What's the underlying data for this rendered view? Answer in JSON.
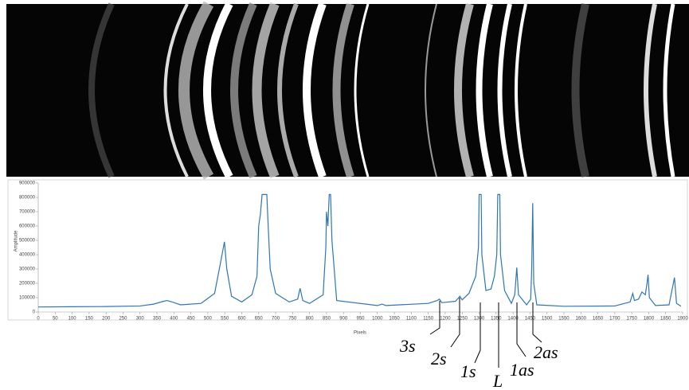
{
  "chart_data": {
    "type": "line",
    "x_label": "Pixels",
    "y_label": "Amplitude",
    "xlim": [
      0,
      1900
    ],
    "xticks": [
      0,
      50,
      100,
      150,
      200,
      250,
      300,
      350,
      400,
      450,
      500,
      550,
      600,
      650,
      700,
      750,
      800,
      850,
      900,
      950,
      1000,
      1050,
      1100,
      1150,
      1200,
      1250,
      1300,
      1350,
      1400,
      1450,
      1500,
      1550,
      1600,
      1650,
      1700,
      1750,
      1800,
      1850,
      1900
    ],
    "ylim": [
      0,
      900000
    ],
    "yticks": [
      0,
      100000,
      200000,
      300000,
      400000,
      500000,
      600000,
      700000,
      800000,
      900000
    ],
    "series": [
      {
        "color": "#2e75b6",
        "x": [
          0,
          100,
          200,
          300,
          340,
          370,
          380,
          395,
          420,
          480,
          520,
          538,
          549,
          556,
          570,
          600,
          630,
          645,
          650,
          655,
          660,
          674,
          678,
          684,
          700,
          740,
          765,
          772,
          780,
          800,
          840,
          848,
          850,
          854,
          858,
          862,
          866,
          880,
          1000,
          1014,
          1025,
          1150,
          1176,
          1183,
          1190,
          1230,
          1240,
          1243,
          1250,
          1270,
          1290,
          1298,
          1300,
          1306,
          1308,
          1320,
          1335,
          1345,
          1352,
          1355,
          1361,
          1363,
          1375,
          1395,
          1405,
          1411,
          1416,
          1440,
          1452,
          1455,
          1458,
          1461,
          1470,
          1550,
          1700,
          1745,
          1753,
          1758,
          1770,
          1780,
          1790,
          1795,
          1798,
          1802,
          1820,
          1860,
          1876,
          1882,
          1895
        ],
        "values": [
          35000,
          37000,
          38000,
          42000,
          55000,
          75000,
          80000,
          70000,
          50000,
          60000,
          130000,
          350000,
          490000,
          300000,
          110000,
          70000,
          120000,
          250000,
          600000,
          680000,
          820000,
          820000,
          600000,
          300000,
          130000,
          70000,
          90000,
          165000,
          80000,
          60000,
          120000,
          450000,
          700000,
          600000,
          820000,
          820000,
          500000,
          80000,
          45000,
          55000,
          45000,
          60000,
          80000,
          90000,
          65000,
          75000,
          100000,
          110000,
          85000,
          130000,
          250000,
          450000,
          820000,
          820000,
          400000,
          150000,
          160000,
          250000,
          400000,
          820000,
          820000,
          400000,
          150000,
          60000,
          120000,
          310000,
          120000,
          50000,
          90000,
          300000,
          760000,
          200000,
          50000,
          40000,
          42000,
          70000,
          130000,
          80000,
          90000,
          140000,
          120000,
          200000,
          260000,
          100000,
          45000,
          50000,
          240000,
          60000,
          40000
        ]
      }
    ],
    "annotations": [
      {
        "text": "3s"
      },
      {
        "text": "2s"
      },
      {
        "text": "1s"
      },
      {
        "text": "L"
      },
      {
        "text": "1as"
      },
      {
        "text": "2as"
      }
    ]
  }
}
